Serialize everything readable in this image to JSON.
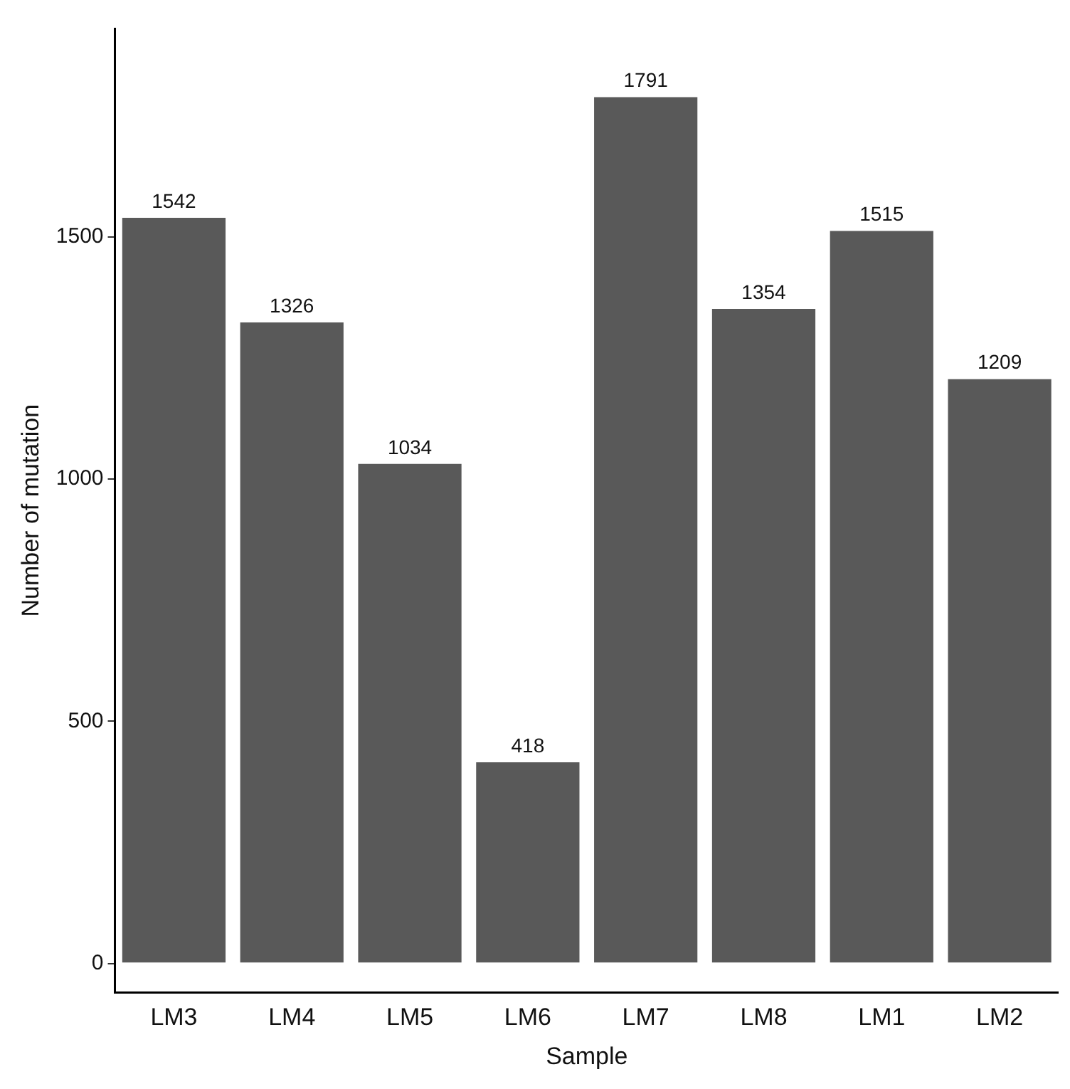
{
  "chart_data": {
    "type": "bar",
    "xlabel": "Sample",
    "ylabel": "Number of mutation",
    "categories": [
      "LM3",
      "LM4",
      "LM5",
      "LM6",
      "LM7",
      "LM8",
      "LM1",
      "LM2"
    ],
    "values": [
      1542,
      1326,
      1034,
      418,
      1791,
      1354,
      1515,
      1209
    ],
    "color": "#595959",
    "ylim": [
      -60,
      1930
    ],
    "yticks": [
      0,
      500,
      1000,
      1500
    ],
    "grid": false,
    "legend": false,
    "data_labels": true
  }
}
